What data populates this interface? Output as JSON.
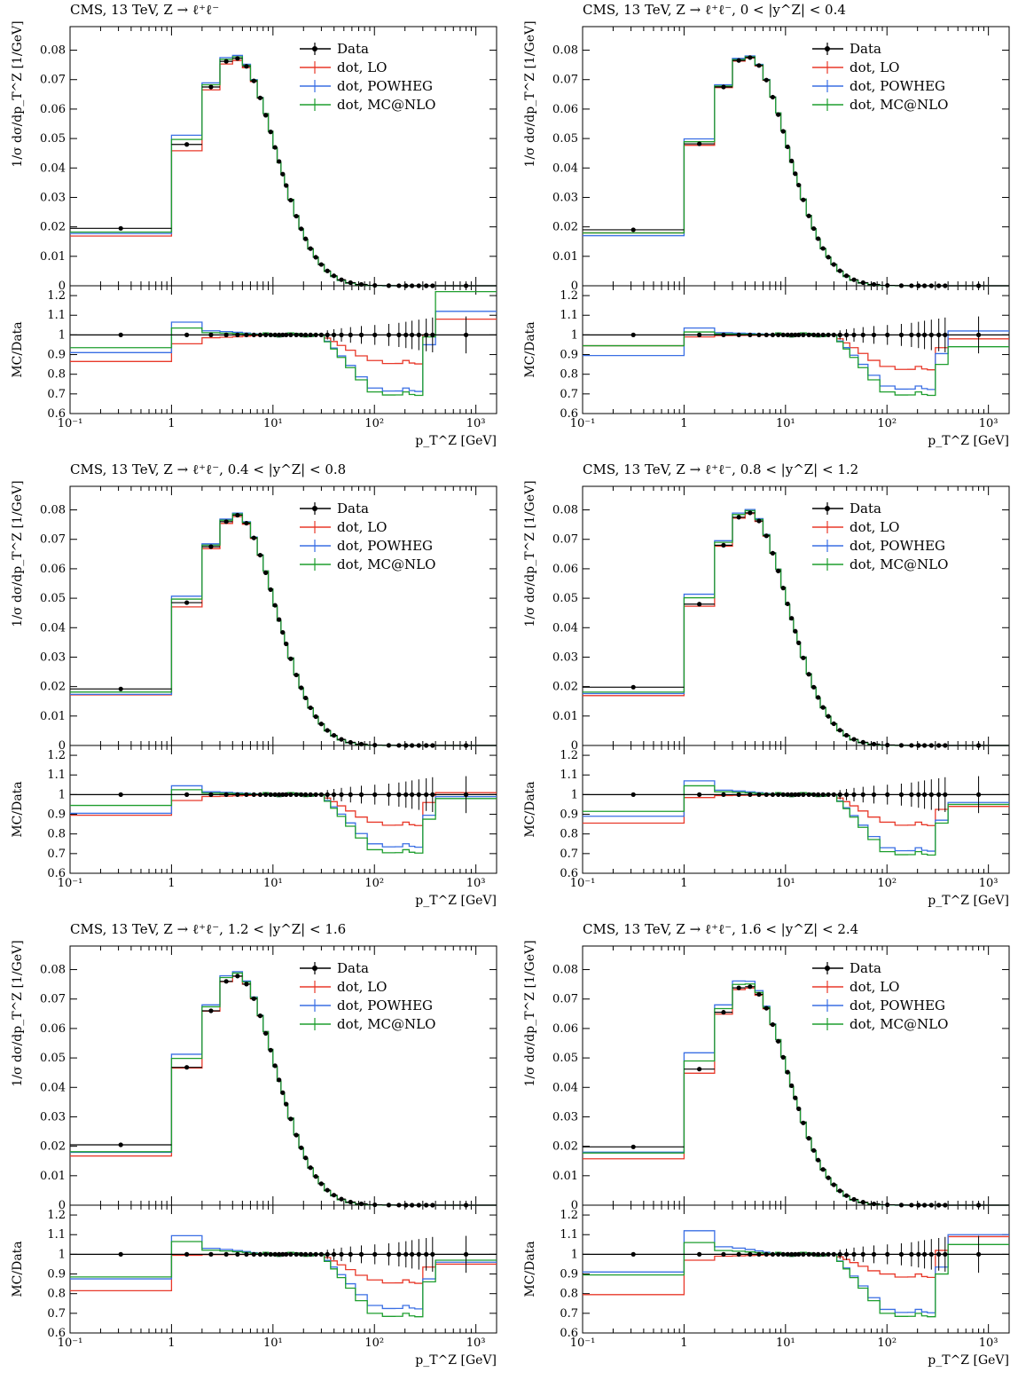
{
  "xlabel": "p_T^Z [GeV]",
  "ylabel_main": "1/σ dσ/dp_T^Z [1/GeV]",
  "ylabel_ratio": "MC/Data",
  "colors": {
    "data": "#000000",
    "lo": "#e8392a",
    "powheg": "#3a6fe4",
    "mcnlo": "#1e9e2e"
  },
  "legend": [
    "Data",
    "dot, LO",
    "dot, POWHEG",
    "dot, MC@NLO"
  ],
  "ticks_main": [
    "0",
    "0.01",
    "0.02",
    "0.03",
    "0.04",
    "0.05",
    "0.06",
    "0.07",
    "0.08"
  ],
  "ticks_ratio": [
    "0.6",
    "0.7",
    "0.8",
    "0.9",
    "1",
    "1.1",
    "1.2"
  ],
  "chart_data": [
    {
      "type": "line",
      "title": "CMS, 13 TeV, Z → ℓ⁺ℓ⁻",
      "xlabel": "p_T^Z [GeV]",
      "ylabel": "1/σ dσ/dp_T^Z [1/GeV]",
      "xscale": "log",
      "xlim": [
        0.1,
        1600
      ],
      "ylim": [
        0,
        0.088
      ],
      "ratio_ylim": [
        0.6,
        1.25
      ],
      "data": {
        "low": 0.0195,
        "b1": 0.048,
        "b2": 0.0675,
        "b3": 0.0762,
        "b4": 0.0772
      },
      "ratio": {
        "lo": {
          "low": 0.865,
          "b1": 0.955,
          "dip": 0.86,
          "tail": 1.08
        },
        "powheg": {
          "low": 0.91,
          "b1": 1.065,
          "dip": 0.72,
          "tail": 1.12
        },
        "mcnlo": {
          "low": 0.935,
          "b1": 1.035,
          "dip": 0.7,
          "tail": 1.22
        }
      }
    },
    {
      "type": "line",
      "title": "CMS, 13 TeV, Z → ℓ⁺ℓ⁻, 0 < |y^Z| < 0.4",
      "xlabel": "p_T^Z [GeV]",
      "ylabel": "1/σ dσ/dp_T^Z [1/GeV]",
      "xscale": "log",
      "xlim": [
        0.1,
        1600
      ],
      "ylim": [
        0,
        0.088
      ],
      "ratio_ylim": [
        0.6,
        1.25
      ],
      "data": {
        "low": 0.019,
        "b1": 0.0482,
        "b2": 0.0675,
        "b3": 0.0765,
        "b4": 0.0775
      },
      "ratio": {
        "lo": {
          "low": 0.945,
          "b1": 0.99,
          "dip": 0.83,
          "tail": 0.98
        },
        "powheg": {
          "low": 0.895,
          "b1": 1.035,
          "dip": 0.73,
          "tail": 1.02
        },
        "mcnlo": {
          "low": 0.945,
          "b1": 1.015,
          "dip": 0.7,
          "tail": 0.94
        }
      }
    },
    {
      "type": "line",
      "title": "CMS, 13 TeV, Z → ℓ⁺ℓ⁻, 0.4 < |y^Z| < 0.8",
      "xlabel": "p_T^Z [GeV]",
      "ylabel": "1/σ dσ/dp_T^Z [1/GeV]",
      "xscale": "log",
      "xlim": [
        0.1,
        1600
      ],
      "ylim": [
        0,
        0.088
      ],
      "ratio_ylim": [
        0.6,
        1.25
      ],
      "data": {
        "low": 0.0192,
        "b1": 0.0485,
        "b2": 0.0675,
        "b3": 0.076,
        "b4": 0.0782
      },
      "ratio": {
        "lo": {
          "low": 0.895,
          "b1": 0.97,
          "dip": 0.85,
          "tail": 1.01
        },
        "powheg": {
          "low": 0.905,
          "b1": 1.045,
          "dip": 0.74,
          "tail": 0.99
        },
        "mcnlo": {
          "low": 0.945,
          "b1": 1.025,
          "dip": 0.71,
          "tail": 0.98
        }
      }
    },
    {
      "type": "line",
      "title": "CMS, 13 TeV, Z → ℓ⁺ℓ⁻, 0.8 < |y^Z| < 1.2",
      "xlabel": "p_T^Z [GeV]",
      "ylabel": "1/σ dσ/dp_T^Z [1/GeV]",
      "xscale": "log",
      "xlim": [
        0.1,
        1600
      ],
      "ylim": [
        0,
        0.088
      ],
      "ratio_ylim": [
        0.6,
        1.25
      ],
      "data": {
        "low": 0.0198,
        "b1": 0.048,
        "b2": 0.068,
        "b3": 0.0775,
        "b4": 0.079
      },
      "ratio": {
        "lo": {
          "low": 0.855,
          "b1": 0.985,
          "dip": 0.85,
          "tail": 0.94
        },
        "powheg": {
          "low": 0.89,
          "b1": 1.07,
          "dip": 0.72,
          "tail": 0.96
        },
        "mcnlo": {
          "low": 0.915,
          "b1": 1.045,
          "dip": 0.7,
          "tail": 0.95
        }
      }
    },
    {
      "type": "line",
      "title": "CMS, 13 TeV, Z → ℓ⁺ℓ⁻, 1.2 < |y^Z| < 1.6",
      "xlabel": "p_T^Z [GeV]",
      "ylabel": "1/σ dσ/dp_T^Z [1/GeV]",
      "xscale": "log",
      "xlim": [
        0.1,
        1600
      ],
      "ylim": [
        0,
        0.088
      ],
      "ratio_ylim": [
        0.6,
        1.25
      ],
      "data": {
        "low": 0.0205,
        "b1": 0.0468,
        "b2": 0.066,
        "b3": 0.076,
        "b4": 0.0778
      },
      "ratio": {
        "lo": {
          "low": 0.815,
          "b1": 0.995,
          "dip": 0.86,
          "tail": 0.95
        },
        "powheg": {
          "low": 0.875,
          "b1": 1.095,
          "dip": 0.73,
          "tail": 0.96
        },
        "mcnlo": {
          "low": 0.885,
          "b1": 1.065,
          "dip": 0.69,
          "tail": 0.97
        }
      }
    },
    {
      "type": "line",
      "title": "CMS, 13 TeV, Z → ℓ⁺ℓ⁻, 1.6 < |y^Z| < 2.4",
      "xlabel": "p_T^Z [GeV]",
      "ylabel": "1/σ dσ/dp_T^Z [1/GeV]",
      "xscale": "log",
      "xlim": [
        0.1,
        1600
      ],
      "ylim": [
        0,
        0.088
      ],
      "ratio_ylim": [
        0.6,
        1.25
      ],
      "data": {
        "low": 0.0198,
        "b1": 0.0462,
        "b2": 0.0655,
        "b3": 0.0738,
        "b4": 0.0742
      },
      "ratio": {
        "lo": {
          "low": 0.795,
          "b1": 0.97,
          "dip": 0.89,
          "tail": 1.09
        },
        "powheg": {
          "low": 0.91,
          "b1": 1.12,
          "dip": 0.71,
          "tail": 1.1
        },
        "mcnlo": {
          "low": 0.895,
          "b1": 1.06,
          "dip": 0.69,
          "tail": 1.05
        }
      }
    }
  ]
}
